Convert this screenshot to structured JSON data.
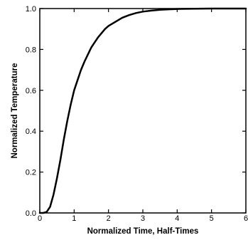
{
  "chart_data": {
    "type": "line",
    "title": "",
    "xlabel": "Normalized Time, Half-Times",
    "ylabel": "Normalized Temperature",
    "xlim": [
      0,
      6
    ],
    "ylim": [
      0,
      1.0
    ],
    "x_ticks": [
      "0",
      "1",
      "2",
      "3",
      "4",
      "5",
      "6"
    ],
    "y_ticks": [
      "0.0",
      "0.2",
      "0.4",
      "0.6",
      "0.8",
      "1.0"
    ],
    "grid": false,
    "series": [
      {
        "color": "#000000",
        "x": [
          0,
          0.1,
          0.2,
          0.3,
          0.4,
          0.5,
          0.6,
          0.7,
          0.8,
          0.9,
          1.0,
          1.1,
          1.2,
          1.3,
          1.4,
          1.5,
          1.6,
          1.7,
          1.8,
          1.9,
          2.0,
          2.2,
          2.4,
          2.6,
          2.8,
          3.0,
          3.25,
          3.5,
          3.75,
          4.0,
          4.5,
          5.0,
          5.5,
          6.0
        ],
        "y": [
          0,
          0.0,
          0.005,
          0.03,
          0.09,
          0.17,
          0.26,
          0.36,
          0.45,
          0.53,
          0.6,
          0.65,
          0.7,
          0.74,
          0.775,
          0.81,
          0.835,
          0.86,
          0.88,
          0.9,
          0.915,
          0.935,
          0.955,
          0.968,
          0.978,
          0.985,
          0.99,
          0.994,
          0.996,
          0.998,
          0.999,
          1.0,
          1.0,
          1.0
        ]
      }
    ]
  }
}
